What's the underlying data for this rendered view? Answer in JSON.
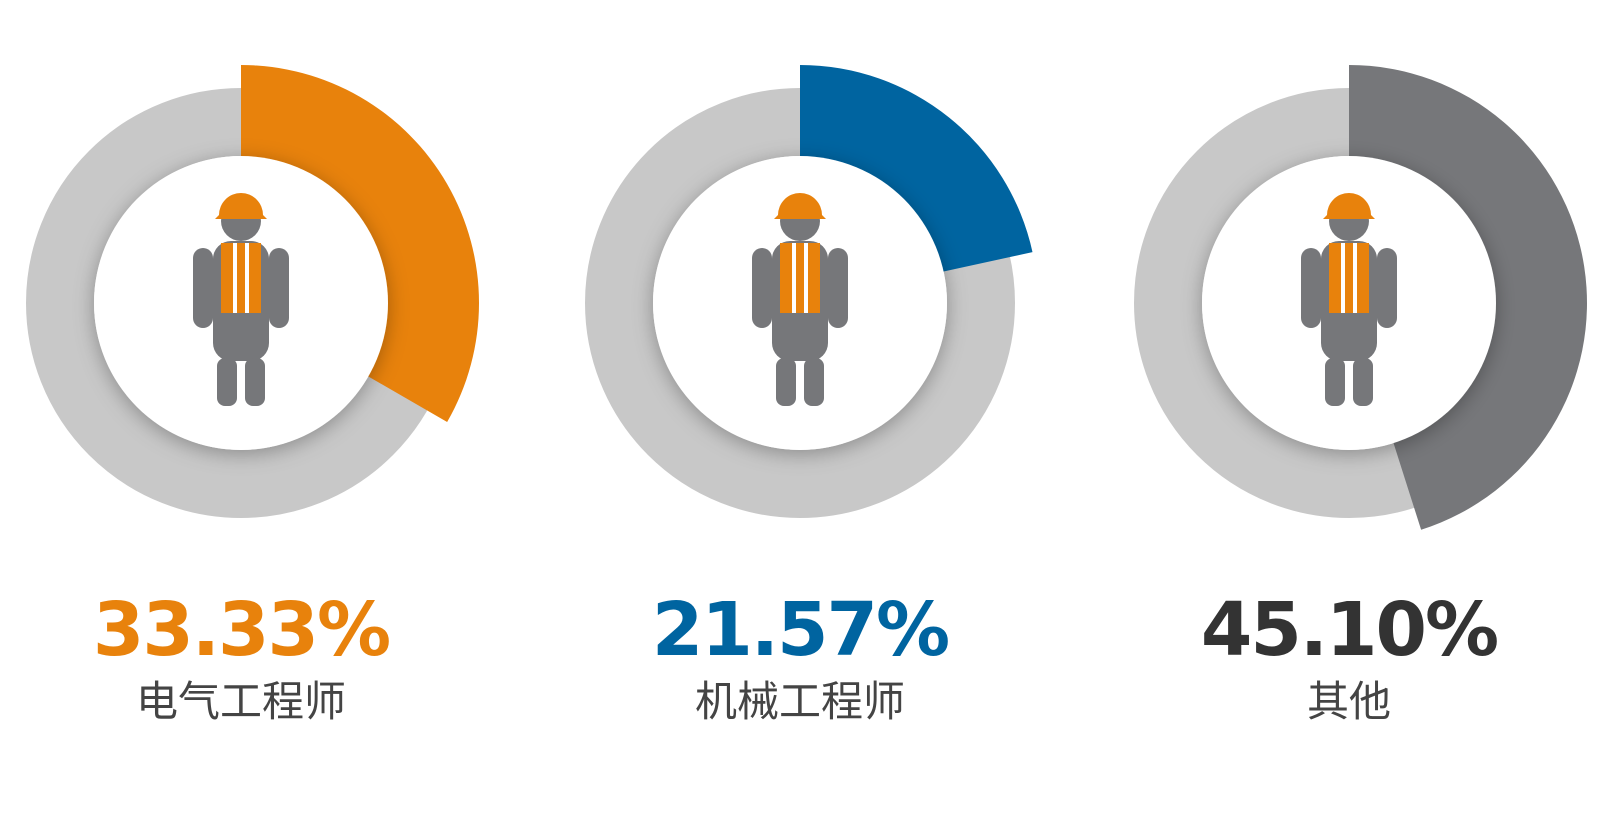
{
  "chart_data": {
    "type": "donut",
    "categories": [
      "电气工程师",
      "机械工程师",
      "其他"
    ],
    "values": [
      33.33,
      21.57,
      45.1
    ],
    "value_labels": [
      "33.33%",
      "21.57%",
      "45.10%"
    ],
    "colors": [
      "#e8820c",
      "#0064a0",
      "#76777a"
    ],
    "value_label_colors": [
      "#e8820c",
      "#0064a0",
      "#333333"
    ]
  }
}
